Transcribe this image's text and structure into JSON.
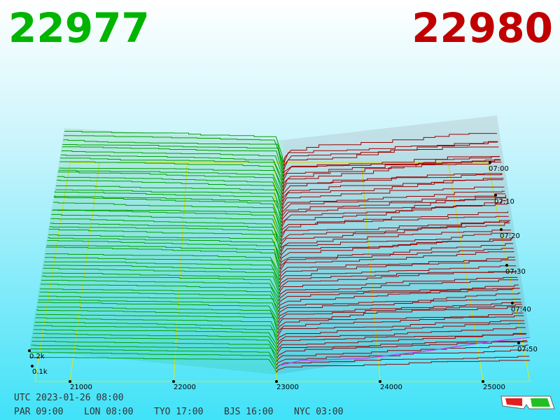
{
  "header": {
    "bid": "22977",
    "ask": "22980"
  },
  "price_axis": [
    "21000",
    "22000",
    "23000",
    "24000",
    "25000"
  ],
  "time_axis": [
    "07:00",
    "07:10",
    "07:20",
    "07:30",
    "07:40",
    "07:50"
  ],
  "depth_axis": [
    "0.2k",
    "0.1k"
  ],
  "clock": {
    "utc": "UTC 2023-01-26 08:00",
    "cities": [
      "PAR 09:00",
      "LON 08:00",
      "TYO 17:00",
      "BJS 16:00",
      "NYC 03:00"
    ]
  }
}
